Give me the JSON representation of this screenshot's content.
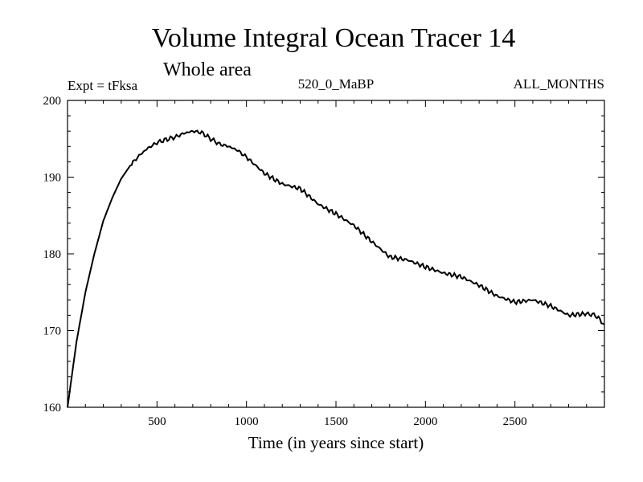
{
  "chart_data": {
    "type": "line",
    "title": "Volume Integral Ocean Tracer 14",
    "subtitle": "Whole area",
    "experiment": "Expt = tFksa",
    "run_label": "520_0_MaBP",
    "period_label": "ALL_MONTHS",
    "xlabel": "Time (in years since start)",
    "ylabel": "",
    "xlim": [
      0,
      3000
    ],
    "ylim": [
      160,
      200
    ],
    "x_ticks": [
      500,
      1000,
      1500,
      2000,
      2500
    ],
    "x_tick_labels": [
      "500",
      "1000",
      "1500",
      "2000",
      "2500"
    ],
    "y_ticks": [
      160,
      170,
      180,
      190,
      200
    ],
    "y_tick_labels": [
      "160",
      "170",
      "180",
      "190",
      "200"
    ],
    "grid": false,
    "series": [
      {
        "name": "Ocean Tracer 14",
        "x": [
          0,
          50,
          100,
          150,
          200,
          250,
          300,
          350,
          400,
          450,
          500,
          550,
          600,
          650,
          700,
          750,
          800,
          850,
          900,
          950,
          1000,
          1100,
          1200,
          1300,
          1400,
          1500,
          1600,
          1700,
          1800,
          1900,
          2000,
          2100,
          2200,
          2300,
          2400,
          2500,
          2600,
          2700,
          2800,
          2900,
          2950,
          3000
        ],
        "values": [
          160,
          168.5,
          175,
          180,
          184.3,
          187.3,
          189.8,
          191.5,
          192.8,
          193.8,
          194.5,
          194.9,
          195.2,
          195.7,
          196.0,
          195.8,
          195.0,
          194.3,
          194.0,
          193.5,
          192.6,
          190.5,
          189.1,
          188.5,
          186.5,
          185.2,
          183.7,
          181.6,
          179.6,
          179.2,
          178.3,
          177.5,
          177.0,
          175.9,
          174.5,
          173.7,
          174.0,
          173.2,
          172.0,
          172.2,
          172.0,
          170.8
        ]
      }
    ]
  }
}
